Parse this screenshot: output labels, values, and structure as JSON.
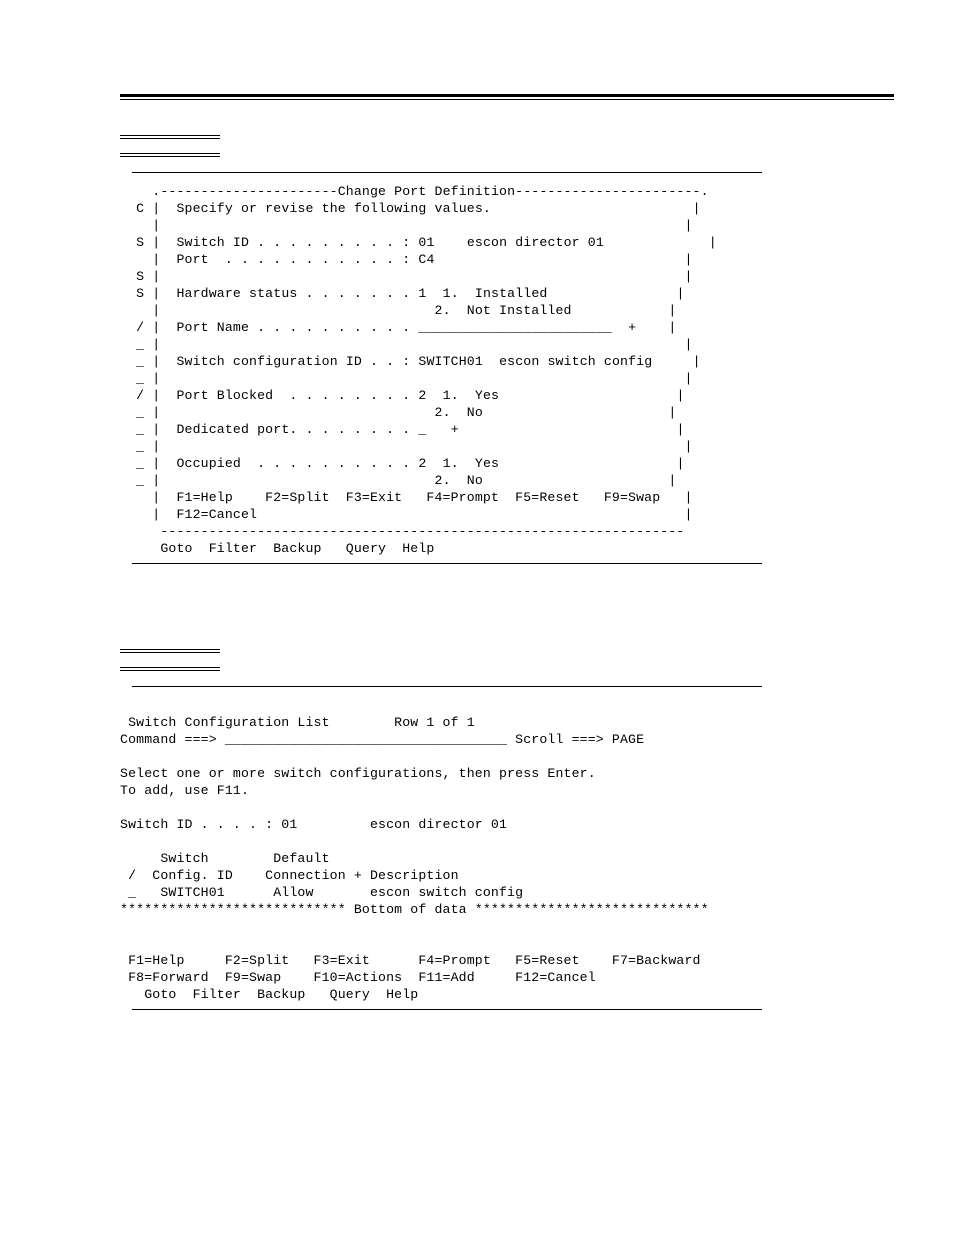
{
  "panel1": {
    "gutter_chars": [
      "C",
      "S",
      "S",
      "S",
      "/",
      "_",
      "_",
      "_",
      "/",
      "_",
      "_",
      "_",
      "_",
      "_"
    ],
    "title": "Change Port Definition",
    "instruction": "Specify or revise the following values.",
    "switch_id_label": "Switch ID . . . . . . . . . :",
    "switch_id_val": "01",
    "switch_id_desc": "escon director 01",
    "port_label": "Port  . . . . . . . . . . . :",
    "port_val": "C4",
    "hw_status_label": "Hardware status . . . . . . .",
    "hw_status_val": "1",
    "hw_opt1": "1.  Installed",
    "hw_opt2": "2.  Not Installed",
    "port_name_label": "Port Name . . . . . . . . . .",
    "port_name_val": "________________________",
    "sw_cfg_label": "Switch configuration ID . . :",
    "sw_cfg_val": "SWITCH01",
    "sw_cfg_desc": "escon switch config",
    "port_blocked_label": "Port Blocked  . . . . . . . .",
    "port_blocked_val": "2",
    "pb_opt1": "1.  Yes",
    "pb_opt2": "2.  No",
    "dedicated_label": "Dedicated port. . . . . . . .",
    "dedicated_val": "_",
    "occupied_label": "Occupied  . . . . . . . . . .",
    "occupied_val": "2",
    "occ_opt1": "1.  Yes",
    "occ_opt2": "2.  No",
    "fkeys_1": " F1=Help    F2=Split  F3=Exit   F4=Prompt  F5=Reset   F9=Swap",
    "fkeys_2": " F12=Cancel",
    "menu": "  Goto  Filter  Backup   Query  Help"
  },
  "panel2": {
    "title": " Switch Configuration List        Row 1 of 1",
    "cmd_label": "Command ===>",
    "cmd_input": "___________________________________",
    "scroll": "Scroll ===> PAGE",
    "instr1": "Select one or more switch configurations, then press Enter.",
    "instr2": "To add, use F11.",
    "switch_id_line": "Switch ID . . . . : 01         escon director 01",
    "hdr1": "     Switch        Default",
    "hdr2": " /  Config. ID    Connection + Description",
    "row1": " _   SWITCH01      Allow       escon switch config",
    "bottom_line": "**************************** Bottom of data *****************************",
    "fkeys_1": " F1=Help     F2=Split   F3=Exit      F4=Prompt   F5=Reset    F7=Backward",
    "fkeys_2": " F8=Forward  F9=Swap    F10=Actions  F11=Add     F12=Cancel",
    "menu": "   Goto  Filter  Backup   Query  Help"
  }
}
